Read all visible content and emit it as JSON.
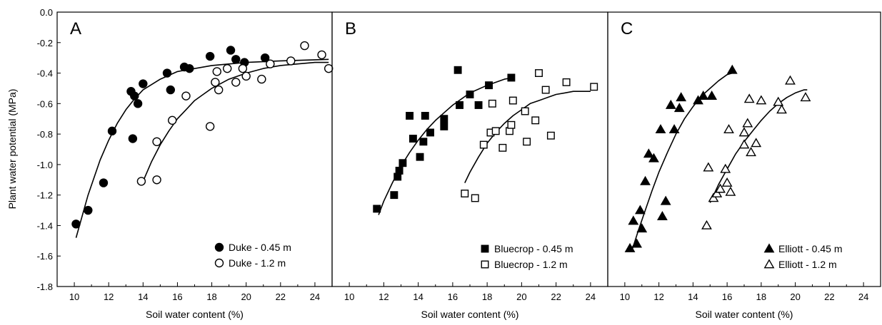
{
  "y_axis": {
    "label": "Plant water potential (MPa)",
    "range": [
      -1.8,
      0.0
    ],
    "ticks": [
      "0.0",
      "-0.2",
      "-0.4",
      "-0.6",
      "-0.8",
      "-1.0",
      "-1.2",
      "-1.4",
      "-1.6",
      "-1.8"
    ],
    "tick_values": [
      0.0,
      -0.2,
      -0.4,
      -0.6,
      -0.8,
      -1.0,
      -1.2,
      -1.4,
      -1.6,
      -1.8
    ]
  },
  "chart_data": [
    {
      "type": "scatter",
      "panel": "A",
      "xlabel": "Soil water content (%)",
      "ylabel": "Plant water potential (MPa)",
      "xlim": [
        9,
        25
      ],
      "ylim": [
        -1.8,
        0.0
      ],
      "x_ticks": [
        "10",
        "12",
        "14",
        "16",
        "18",
        "20",
        "22",
        "24"
      ],
      "x_tick_values": [
        10,
        12,
        14,
        16,
        18,
        20,
        22,
        24
      ],
      "grid": false,
      "legend_position": "bottom-right",
      "series": [
        {
          "name": "Duke - 0.45 m",
          "marker": "filled-circle",
          "points": [
            [
              10.1,
              -1.39
            ],
            [
              10.8,
              -1.3
            ],
            [
              11.7,
              -1.12
            ],
            [
              12.2,
              -0.78
            ],
            [
              13.3,
              -0.52
            ],
            [
              13.4,
              -0.83
            ],
            [
              13.5,
              -0.55
            ],
            [
              13.7,
              -0.6
            ],
            [
              14.0,
              -0.47
            ],
            [
              15.4,
              -0.4
            ],
            [
              15.6,
              -0.51
            ],
            [
              16.4,
              -0.36
            ],
            [
              16.7,
              -0.37
            ],
            [
              17.9,
              -0.29
            ],
            [
              19.1,
              -0.25
            ],
            [
              19.4,
              -0.31
            ],
            [
              19.9,
              -0.33
            ],
            [
              21.1,
              -0.3
            ]
          ],
          "fit": [
            [
              10.1,
              -1.48
            ],
            [
              10.8,
              -1.2
            ],
            [
              11.5,
              -0.97
            ],
            [
              12.0,
              -0.84
            ],
            [
              12.5,
              -0.73
            ],
            [
              13.0,
              -0.64
            ],
            [
              13.5,
              -0.57
            ],
            [
              14.0,
              -0.51
            ],
            [
              15.0,
              -0.44
            ],
            [
              16.0,
              -0.39
            ],
            [
              18.0,
              -0.35
            ],
            [
              20.0,
              -0.33
            ],
            [
              22.0,
              -0.32
            ],
            [
              24.8,
              -0.31
            ]
          ]
        },
        {
          "name": "Duke - 1.2 m",
          "marker": "open-circle",
          "points": [
            [
              13.9,
              -1.11
            ],
            [
              14.8,
              -0.85
            ],
            [
              14.8,
              -1.1
            ],
            [
              15.7,
              -0.71
            ],
            [
              16.5,
              -0.55
            ],
            [
              17.9,
              -0.75
            ],
            [
              18.2,
              -0.46
            ],
            [
              18.3,
              -0.39
            ],
            [
              18.4,
              -0.51
            ],
            [
              18.9,
              -0.37
            ],
            [
              19.4,
              -0.46
            ],
            [
              19.8,
              -0.37
            ],
            [
              20.0,
              -0.42
            ],
            [
              20.9,
              -0.44
            ],
            [
              21.4,
              -0.34
            ],
            [
              22.6,
              -0.32
            ],
            [
              23.4,
              -0.22
            ],
            [
              24.4,
              -0.28
            ],
            [
              24.8,
              -0.37
            ]
          ],
          "fit": [
            [
              14.0,
              -1.11
            ],
            [
              14.5,
              -0.98
            ],
            [
              15.0,
              -0.87
            ],
            [
              15.5,
              -0.78
            ],
            [
              16.0,
              -0.7
            ],
            [
              16.5,
              -0.64
            ],
            [
              17.0,
              -0.58
            ],
            [
              17.5,
              -0.54
            ],
            [
              18.0,
              -0.5
            ],
            [
              19.0,
              -0.44
            ],
            [
              20.0,
              -0.4
            ],
            [
              21.0,
              -0.37
            ],
            [
              22.0,
              -0.35
            ],
            [
              23.0,
              -0.34
            ],
            [
              24.0,
              -0.33
            ],
            [
              24.8,
              -0.33
            ]
          ]
        }
      ]
    },
    {
      "type": "scatter",
      "panel": "B",
      "xlabel": "Soil water content (%)",
      "ylabel": "",
      "xlim": [
        9,
        25
      ],
      "ylim": [
        -1.8,
        0.0
      ],
      "x_ticks": [
        "10",
        "12",
        "14",
        "16",
        "18",
        "20",
        "22",
        "24"
      ],
      "x_tick_values": [
        10,
        12,
        14,
        16,
        18,
        20,
        22,
        24
      ],
      "grid": false,
      "legend_position": "bottom-right",
      "series": [
        {
          "name": "Bluecrop - 0.45 m",
          "marker": "filled-square",
          "points": [
            [
              11.6,
              -1.29
            ],
            [
              12.6,
              -1.2
            ],
            [
              12.8,
              -1.08
            ],
            [
              12.9,
              -1.04
            ],
            [
              13.1,
              -0.99
            ],
            [
              13.5,
              -0.68
            ],
            [
              13.7,
              -0.83
            ],
            [
              14.1,
              -0.95
            ],
            [
              14.3,
              -0.85
            ],
            [
              14.4,
              -0.68
            ],
            [
              14.7,
              -0.79
            ],
            [
              15.5,
              -0.7
            ],
            [
              15.5,
              -0.75
            ],
            [
              16.3,
              -0.38
            ],
            [
              16.4,
              -0.61
            ],
            [
              17.0,
              -0.54
            ],
            [
              17.5,
              -0.61
            ],
            [
              18.1,
              -0.48
            ],
            [
              19.4,
              -0.43
            ]
          ],
          "fit": [
            [
              11.7,
              -1.33
            ],
            [
              12.0,
              -1.24
            ],
            [
              12.5,
              -1.12
            ],
            [
              13.0,
              -1.01
            ],
            [
              13.5,
              -0.92
            ],
            [
              14.0,
              -0.84
            ],
            [
              14.5,
              -0.77
            ],
            [
              15.0,
              -0.71
            ],
            [
              15.5,
              -0.66
            ],
            [
              16.0,
              -0.61
            ],
            [
              17.0,
              -0.53
            ],
            [
              18.0,
              -0.48
            ],
            [
              19.0,
              -0.44
            ],
            [
              19.5,
              -0.43
            ]
          ]
        },
        {
          "name": "Bluecrop - 1.2 m",
          "marker": "open-square",
          "points": [
            [
              16.7,
              -1.19
            ],
            [
              17.3,
              -1.22
            ],
            [
              17.8,
              -0.87
            ],
            [
              18.2,
              -0.79
            ],
            [
              18.3,
              -0.6
            ],
            [
              18.5,
              -0.78
            ],
            [
              18.9,
              -0.89
            ],
            [
              19.3,
              -0.78
            ],
            [
              19.4,
              -0.74
            ],
            [
              19.5,
              -0.58
            ],
            [
              20.2,
              -0.65
            ],
            [
              20.3,
              -0.85
            ],
            [
              20.8,
              -0.71
            ],
            [
              21.0,
              -0.4
            ],
            [
              21.4,
              -0.51
            ],
            [
              21.7,
              -0.81
            ],
            [
              22.6,
              -0.46
            ],
            [
              24.2,
              -0.49
            ]
          ],
          "fit": [
            [
              16.7,
              -1.12
            ],
            [
              17.0,
              -1.05
            ],
            [
              17.5,
              -0.95
            ],
            [
              18.0,
              -0.86
            ],
            [
              18.5,
              -0.79
            ],
            [
              19.0,
              -0.73
            ],
            [
              19.5,
              -0.68
            ],
            [
              20.0,
              -0.64
            ],
            [
              20.5,
              -0.6
            ],
            [
              21.0,
              -0.58
            ],
            [
              21.5,
              -0.56
            ],
            [
              22.0,
              -0.54
            ],
            [
              22.5,
              -0.53
            ],
            [
              23.0,
              -0.52
            ],
            [
              23.5,
              -0.52
            ],
            [
              24.0,
              -0.52
            ]
          ]
        }
      ]
    },
    {
      "type": "scatter",
      "panel": "C",
      "xlabel": "Soil water content (%)",
      "ylabel": "",
      "xlim": [
        9,
        25
      ],
      "ylim": [
        -1.8,
        0.0
      ],
      "x_ticks": [
        "10",
        "12",
        "14",
        "16",
        "18",
        "20",
        "22",
        "24"
      ],
      "x_tick_values": [
        10,
        12,
        14,
        16,
        18,
        20,
        22,
        24
      ],
      "grid": false,
      "legend_position": "bottom-right",
      "series": [
        {
          "name": "Elliott - 0.45 m",
          "marker": "filled-triangle",
          "points": [
            [
              10.3,
              -1.55
            ],
            [
              10.5,
              -1.37
            ],
            [
              10.7,
              -1.52
            ],
            [
              10.9,
              -1.3
            ],
            [
              11.0,
              -1.42
            ],
            [
              11.2,
              -1.11
            ],
            [
              11.4,
              -0.93
            ],
            [
              11.7,
              -0.96
            ],
            [
              12.1,
              -0.77
            ],
            [
              12.2,
              -1.34
            ],
            [
              12.4,
              -1.24
            ],
            [
              12.7,
              -0.61
            ],
            [
              12.9,
              -0.77
            ],
            [
              13.2,
              -0.63
            ],
            [
              13.3,
              -0.56
            ],
            [
              14.3,
              -0.58
            ],
            [
              14.6,
              -0.55
            ],
            [
              15.1,
              -0.55
            ],
            [
              16.3,
              -0.38
            ]
          ],
          "fit": [
            [
              10.4,
              -1.57
            ],
            [
              10.8,
              -1.43
            ],
            [
              11.2,
              -1.3
            ],
            [
              11.6,
              -1.17
            ],
            [
              12.0,
              -1.05
            ],
            [
              12.5,
              -0.92
            ],
            [
              13.0,
              -0.8
            ],
            [
              13.5,
              -0.7
            ],
            [
              14.0,
              -0.62
            ],
            [
              14.5,
              -0.55
            ],
            [
              15.0,
              -0.5
            ],
            [
              15.5,
              -0.45
            ],
            [
              16.0,
              -0.41
            ],
            [
              16.3,
              -0.4
            ]
          ]
        },
        {
          "name": "Elliott - 1.2 m",
          "marker": "open-triangle",
          "points": [
            [
              14.8,
              -1.4
            ],
            [
              14.9,
              -1.02
            ],
            [
              15.2,
              -1.22
            ],
            [
              15.4,
              -1.19
            ],
            [
              15.6,
              -1.16
            ],
            [
              15.9,
              -1.03
            ],
            [
              16.0,
              -1.12
            ],
            [
              16.2,
              -1.18
            ],
            [
              16.1,
              -0.77
            ],
            [
              17.0,
              -0.87
            ],
            [
              17.0,
              -0.79
            ],
            [
              17.2,
              -0.73
            ],
            [
              17.3,
              -0.57
            ],
            [
              17.4,
              -0.92
            ],
            [
              17.7,
              -0.86
            ],
            [
              18.0,
              -0.58
            ],
            [
              19.0,
              -0.59
            ],
            [
              19.2,
              -0.64
            ],
            [
              19.7,
              -0.45
            ],
            [
              20.6,
              -0.56
            ]
          ],
          "fit": [
            [
              15.0,
              -1.25
            ],
            [
              15.5,
              -1.13
            ],
            [
              16.0,
              -1.03
            ],
            [
              16.5,
              -0.93
            ],
            [
              17.0,
              -0.85
            ],
            [
              17.5,
              -0.78
            ],
            [
              18.0,
              -0.71
            ],
            [
              18.5,
              -0.65
            ],
            [
              19.0,
              -0.6
            ],
            [
              19.5,
              -0.56
            ],
            [
              20.0,
              -0.53
            ],
            [
              20.5,
              -0.51
            ],
            [
              20.7,
              -0.51
            ]
          ]
        }
      ]
    }
  ]
}
